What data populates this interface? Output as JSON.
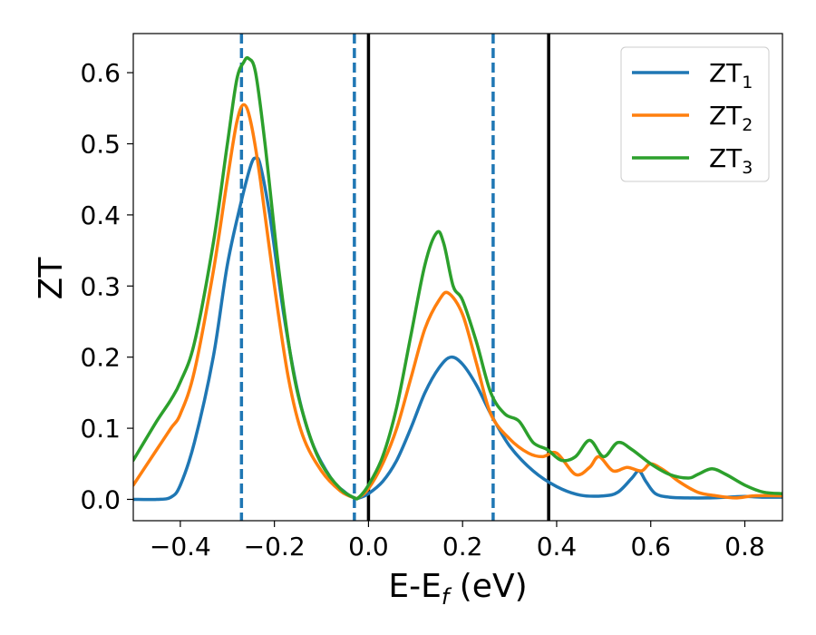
{
  "chart_data": {
    "type": "line",
    "xlabel_main": "E-E",
    "xlabel_sub": "f",
    "xlabel_tail": " (eV)",
    "ylabel": "ZT",
    "xlim": [
      -0.5,
      0.88
    ],
    "ylim": [
      -0.03,
      0.655
    ],
    "grid": false,
    "legend_position": "top-right",
    "x_ticks": [
      {
        "value": -0.4,
        "label": "−0.4"
      },
      {
        "value": -0.2,
        "label": "−0.2"
      },
      {
        "value": 0.0,
        "label": "0.0"
      },
      {
        "value": 0.2,
        "label": "0.2"
      },
      {
        "value": 0.4,
        "label": "0.4"
      },
      {
        "value": 0.6,
        "label": "0.6"
      },
      {
        "value": 0.8,
        "label": "0.8"
      }
    ],
    "y_ticks": [
      {
        "value": 0.0,
        "label": "0.0"
      },
      {
        "value": 0.1,
        "label": "0.1"
      },
      {
        "value": 0.2,
        "label": "0.2"
      },
      {
        "value": 0.3,
        "label": "0.3"
      },
      {
        "value": 0.4,
        "label": "0.4"
      },
      {
        "value": 0.5,
        "label": "0.5"
      },
      {
        "value": 0.6,
        "label": "0.6"
      }
    ],
    "vlines": [
      {
        "x": -0.27,
        "style": "dashed",
        "color": "#1f77b4"
      },
      {
        "x": -0.03,
        "style": "dashed",
        "color": "#1f77b4"
      },
      {
        "x": 0.0,
        "style": "solid",
        "color": "#000000"
      },
      {
        "x": 0.265,
        "style": "dashed",
        "color": "#1f77b4"
      },
      {
        "x": 0.383,
        "style": "solid",
        "color": "#000000"
      }
    ],
    "series": [
      {
        "name": "ZT",
        "subscript": "1",
        "color": "#1f77b4",
        "x": [
          -0.5,
          -0.45,
          -0.42,
          -0.4,
          -0.37,
          -0.33,
          -0.3,
          -0.27,
          -0.25,
          -0.24,
          -0.23,
          -0.21,
          -0.18,
          -0.15,
          -0.12,
          -0.08,
          -0.05,
          -0.03,
          -0.02,
          0.0,
          0.03,
          0.06,
          0.09,
          0.12,
          0.15,
          0.175,
          0.2,
          0.23,
          0.26,
          0.3,
          0.35,
          0.4,
          0.45,
          0.5,
          0.53,
          0.56,
          0.575,
          0.59,
          0.61,
          0.64,
          0.68,
          0.72,
          0.76,
          0.8,
          0.84,
          0.88
        ],
        "y": [
          0.0,
          0.0,
          0.003,
          0.02,
          0.08,
          0.2,
          0.33,
          0.42,
          0.47,
          0.48,
          0.47,
          0.4,
          0.26,
          0.15,
          0.08,
          0.03,
          0.01,
          0.002,
          0.002,
          0.008,
          0.025,
          0.055,
          0.1,
          0.15,
          0.185,
          0.2,
          0.19,
          0.16,
          0.12,
          0.075,
          0.04,
          0.018,
          0.006,
          0.005,
          0.01,
          0.03,
          0.04,
          0.025,
          0.008,
          0.003,
          0.002,
          0.002,
          0.003,
          0.004,
          0.003,
          0.003
        ]
      },
      {
        "name": "ZT",
        "subscript": "2",
        "color": "#ff7f0e",
        "x": [
          -0.5,
          -0.45,
          -0.42,
          -0.4,
          -0.37,
          -0.33,
          -0.3,
          -0.28,
          -0.265,
          -0.25,
          -0.23,
          -0.2,
          -0.17,
          -0.14,
          -0.1,
          -0.06,
          -0.03,
          -0.02,
          0.0,
          0.03,
          0.06,
          0.09,
          0.12,
          0.15,
          0.17,
          0.2,
          0.23,
          0.26,
          0.3,
          0.34,
          0.37,
          0.4,
          0.44,
          0.47,
          0.49,
          0.52,
          0.55,
          0.58,
          0.6,
          0.63,
          0.66,
          0.7,
          0.74,
          0.78,
          0.82,
          0.88
        ],
        "y": [
          0.02,
          0.07,
          0.1,
          0.12,
          0.18,
          0.32,
          0.45,
          0.53,
          0.555,
          0.53,
          0.45,
          0.3,
          0.17,
          0.09,
          0.04,
          0.012,
          0.002,
          0.003,
          0.015,
          0.05,
          0.1,
          0.17,
          0.24,
          0.28,
          0.29,
          0.26,
          0.19,
          0.12,
          0.085,
          0.065,
          0.06,
          0.065,
          0.035,
          0.045,
          0.06,
          0.04,
          0.045,
          0.04,
          0.05,
          0.04,
          0.025,
          0.01,
          0.005,
          0.002,
          0.005,
          0.005
        ]
      },
      {
        "name": "ZT",
        "subscript": "3",
        "color": "#2ca02c",
        "x": [
          -0.5,
          -0.45,
          -0.42,
          -0.4,
          -0.37,
          -0.33,
          -0.3,
          -0.28,
          -0.265,
          -0.255,
          -0.24,
          -0.22,
          -0.19,
          -0.16,
          -0.13,
          -0.1,
          -0.06,
          -0.03,
          -0.02,
          0.0,
          0.03,
          0.06,
          0.09,
          0.12,
          0.145,
          0.16,
          0.18,
          0.2,
          0.23,
          0.26,
          0.29,
          0.32,
          0.35,
          0.38,
          0.41,
          0.44,
          0.47,
          0.5,
          0.53,
          0.56,
          0.6,
          0.64,
          0.68,
          0.7,
          0.73,
          0.76,
          0.8,
          0.84,
          0.88
        ],
        "y": [
          0.055,
          0.11,
          0.14,
          0.165,
          0.22,
          0.36,
          0.5,
          0.59,
          0.615,
          0.62,
          0.6,
          0.5,
          0.32,
          0.18,
          0.1,
          0.05,
          0.015,
          0.002,
          0.003,
          0.02,
          0.06,
          0.13,
          0.23,
          0.33,
          0.375,
          0.36,
          0.3,
          0.28,
          0.22,
          0.15,
          0.12,
          0.11,
          0.08,
          0.07,
          0.055,
          0.06,
          0.083,
          0.06,
          0.08,
          0.07,
          0.05,
          0.035,
          0.03,
          0.035,
          0.043,
          0.035,
          0.02,
          0.01,
          0.008
        ]
      }
    ]
  }
}
